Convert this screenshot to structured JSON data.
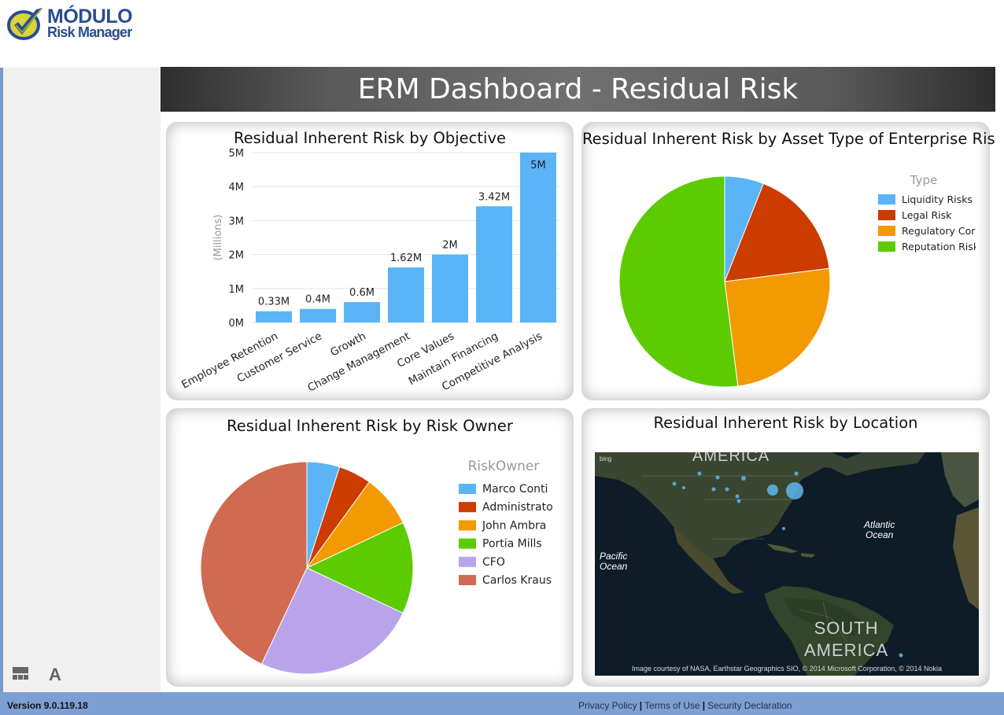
{
  "header": {
    "brand": "MÓDULO",
    "product": "Risk Manager"
  },
  "dashboard": {
    "title": "ERM Dashboard - Residual Risk"
  },
  "sidebar": {
    "tools": [
      {
        "icon": "layout-icon",
        "glyph": "▀"
      },
      {
        "icon": "font-icon",
        "glyph": "A"
      }
    ]
  },
  "panels": {
    "objective": {
      "title": "Residual Inherent Risk by Objective"
    },
    "asset": {
      "title": "Residual Inherent Risk by Asset Type of Enterprise Risk",
      "legend_title": "Type"
    },
    "owner": {
      "title": "Residual Inherent Risk by Risk Owner",
      "legend_title": "RiskOwner"
    },
    "location": {
      "title": "Residual Inherent Risk by Location",
      "map_labels": {
        "north_america": "AMERICA",
        "south_america_1": "SOUTH",
        "south_america_2": "AMERICA",
        "atlantic_1": "Atlantic",
        "atlantic_2": "Ocean",
        "pacific_1": "Pacific",
        "pacific_2": "Ocean"
      },
      "bing": "bing",
      "attribution": "Image courtesy of NASA, Earthstar Geographics  SIO, © 2014 Microsoft Corporation, © 2014 Nokia"
    }
  },
  "chart_data": [
    {
      "type": "bar",
      "title": "Residual Inherent Risk by Objective",
      "ylabel": "(Millions)",
      "categories": [
        "Employee Retention",
        "Customer Service",
        "Growth",
        "Change Management",
        "Core Values",
        "Maintain Financing",
        "Competitive Analysis"
      ],
      "values": [
        0.33,
        0.4,
        0.6,
        1.62,
        2.0,
        3.42,
        5.0
      ],
      "data_labels": [
        "0.33M",
        "0.4M",
        "0.6M",
        "1.62M",
        "2M",
        "3.42M",
        "5M"
      ],
      "yticks": [
        "0M",
        "1M",
        "2M",
        "3M",
        "4M",
        "5M"
      ],
      "ylim": [
        0,
        5
      ],
      "color": "#5ab4f5",
      "grid": true
    },
    {
      "type": "pie",
      "title": "Residual Inherent Risk by Asset Type of Enterprise Risk",
      "legend_title": "Type",
      "legend_position": "right",
      "slices": [
        {
          "label": "Liquidity Risks",
          "value": 6,
          "color": "#5ab4f5"
        },
        {
          "label": "Legal Risk",
          "value": 17,
          "color": "#cc3b00"
        },
        {
          "label": "Regulatory Cor",
          "value": 25,
          "color": "#f29a00"
        },
        {
          "label": "Reputation Risk",
          "value": 52,
          "color": "#5ccc00"
        }
      ]
    },
    {
      "type": "pie",
      "title": "Residual Inherent Risk by Risk Owner",
      "legend_title": "RiskOwner",
      "legend_position": "right",
      "slices": [
        {
          "label": "Marco Conti",
          "value": 5,
          "color": "#5ab4f5"
        },
        {
          "label": "Administrato",
          "value": 5,
          "color": "#cc3b00"
        },
        {
          "label": "John Ambra",
          "value": 8,
          "color": "#f29a00"
        },
        {
          "label": "Portia Mills",
          "value": 14,
          "color": "#5ccc00"
        },
        {
          "label": "CFO",
          "value": 25,
          "color": "#b9a4ec"
        },
        {
          "label": "Carlos Kraus",
          "value": 43,
          "color": "#d06a50"
        }
      ]
    }
  ],
  "footer": {
    "version": "Version 9.0.119.18",
    "links": [
      "Privacy Policy",
      "Terms of Use",
      "Security Declaration"
    ],
    "separator": "|"
  }
}
